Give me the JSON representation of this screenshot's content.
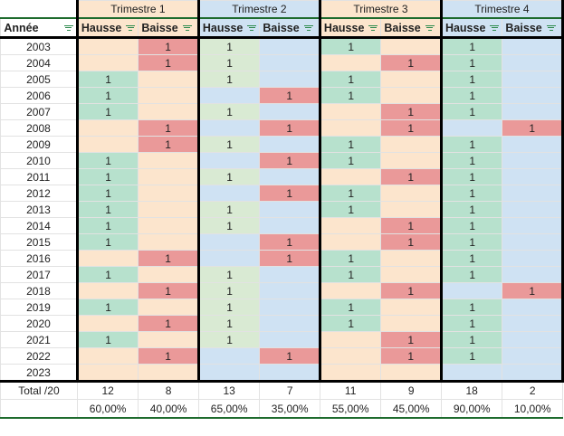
{
  "colors": {
    "peach": "#fce5cd",
    "blue": "#cfe2f3",
    "hausse": "#b7e1cd",
    "hausse_t2": "#d9ead3",
    "baisse": "#ea9999"
  },
  "quarters": [
    "Trimestre 1",
    "Trimestre 2",
    "Trimestre 3",
    "Trimestre 4"
  ],
  "headers": {
    "year": "Année",
    "hausse": "Hausse",
    "baisse": "Baisse"
  },
  "rows": [
    {
      "year": "2003",
      "v": [
        "",
        "1",
        "1",
        "",
        "1",
        "",
        "1",
        ""
      ]
    },
    {
      "year": "2004",
      "v": [
        "",
        "1",
        "1",
        "",
        "",
        "1",
        "1",
        ""
      ]
    },
    {
      "year": "2005",
      "v": [
        "1",
        "",
        "1",
        "",
        "1",
        "",
        "1",
        ""
      ]
    },
    {
      "year": "2006",
      "v": [
        "1",
        "",
        "",
        "1",
        "1",
        "",
        "1",
        ""
      ]
    },
    {
      "year": "2007",
      "v": [
        "1",
        "",
        "1",
        "",
        "",
        "1",
        "1",
        ""
      ]
    },
    {
      "year": "2008",
      "v": [
        "",
        "1",
        "",
        "1",
        "",
        "1",
        "",
        "1"
      ]
    },
    {
      "year": "2009",
      "v": [
        "",
        "1",
        "1",
        "",
        "1",
        "",
        "1",
        ""
      ]
    },
    {
      "year": "2010",
      "v": [
        "1",
        "",
        "",
        "1",
        "1",
        "",
        "1",
        ""
      ]
    },
    {
      "year": "2011",
      "v": [
        "1",
        "",
        "1",
        "",
        "",
        "1",
        "1",
        ""
      ]
    },
    {
      "year": "2012",
      "v": [
        "1",
        "",
        "",
        "1",
        "1",
        "",
        "1",
        ""
      ]
    },
    {
      "year": "2013",
      "v": [
        "1",
        "",
        "1",
        "",
        "1",
        "",
        "1",
        ""
      ]
    },
    {
      "year": "2014",
      "v": [
        "1",
        "",
        "1",
        "",
        "",
        "1",
        "1",
        ""
      ]
    },
    {
      "year": "2015",
      "v": [
        "1",
        "",
        "",
        "1",
        "",
        "1",
        "1",
        ""
      ]
    },
    {
      "year": "2016",
      "v": [
        "",
        "1",
        "",
        "1",
        "1",
        "",
        "1",
        ""
      ]
    },
    {
      "year": "2017",
      "v": [
        "1",
        "",
        "1",
        "",
        "1",
        "",
        "1",
        ""
      ]
    },
    {
      "year": "2018",
      "v": [
        "",
        "1",
        "1",
        "",
        "",
        "1",
        "",
        "1"
      ]
    },
    {
      "year": "2019",
      "v": [
        "1",
        "",
        "1",
        "",
        "1",
        "",
        "1",
        ""
      ]
    },
    {
      "year": "2020",
      "v": [
        "",
        "1",
        "1",
        "",
        "1",
        "",
        "1",
        ""
      ]
    },
    {
      "year": "2021",
      "v": [
        "1",
        "",
        "1",
        "",
        "",
        "1",
        "1",
        ""
      ]
    },
    {
      "year": "2022",
      "v": [
        "",
        "1",
        "",
        "1",
        "",
        "1",
        "1",
        ""
      ]
    },
    {
      "year": "2023",
      "v": [
        "",
        "",
        "",
        "",
        "",
        "",
        "",
        ""
      ]
    }
  ],
  "totals": {
    "label": "Total /20",
    "values": [
      "12",
      "8",
      "13",
      "7",
      "11",
      "9",
      "18",
      "2"
    ]
  },
  "percentages": [
    "60,00%",
    "40,00%",
    "65,00%",
    "35,00%",
    "55,00%",
    "45,00%",
    "90,00%",
    "10,00%"
  ]
}
